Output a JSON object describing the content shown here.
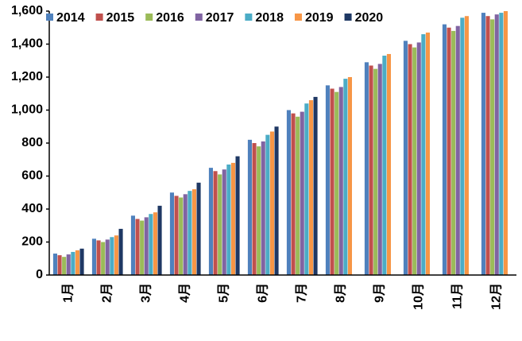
{
  "chart_data": {
    "type": "bar",
    "categories": [
      "1月",
      "2月",
      "3月",
      "4月",
      "5月",
      "6月",
      "7月",
      "8月",
      "9月",
      "10月",
      "11月",
      "12月"
    ],
    "series": [
      {
        "name": "2014",
        "color": "#4f81bd",
        "values": [
          130,
          220,
          360,
          500,
          650,
          820,
          1000,
          1150,
          1290,
          1420,
          1520,
          1590
        ]
      },
      {
        "name": "2015",
        "color": "#c0504d",
        "values": [
          120,
          210,
          340,
          480,
          630,
          800,
          980,
          1130,
          1270,
          1400,
          1500,
          1570
        ]
      },
      {
        "name": "2016",
        "color": "#9bbb59",
        "values": [
          110,
          200,
          330,
          470,
          610,
          780,
          960,
          1110,
          1250,
          1380,
          1480,
          1550
        ]
      },
      {
        "name": "2017",
        "color": "#8064a2",
        "values": [
          125,
          215,
          350,
          490,
          640,
          810,
          990,
          1140,
          1280,
          1410,
          1510,
          1580
        ]
      },
      {
        "name": "2018",
        "color": "#4bacc6",
        "values": [
          140,
          230,
          370,
          510,
          670,
          850,
          1040,
          1190,
          1330,
          1460,
          1560,
          1590
        ]
      },
      {
        "name": "2019",
        "color": "#f79646",
        "values": [
          150,
          240,
          380,
          520,
          680,
          870,
          1060,
          1200,
          1340,
          1470,
          1570,
          1600
        ]
      },
      {
        "name": "2020",
        "color": "#1f3864",
        "values": [
          160,
          280,
          420,
          560,
          720,
          900,
          1080,
          null,
          null,
          null,
          null,
          null
        ]
      }
    ],
    "ylim": [
      0,
      1600
    ],
    "yticks": [
      0,
      200,
      400,
      600,
      800,
      {
        "value": 1000,
        "label": "1,000"
      },
      {
        "value": 1200,
        "label": "1,200"
      },
      {
        "value": 1400,
        "label": "1,400"
      },
      {
        "value": 1600,
        "label": "1,600"
      }
    ],
    "legend": "top"
  }
}
